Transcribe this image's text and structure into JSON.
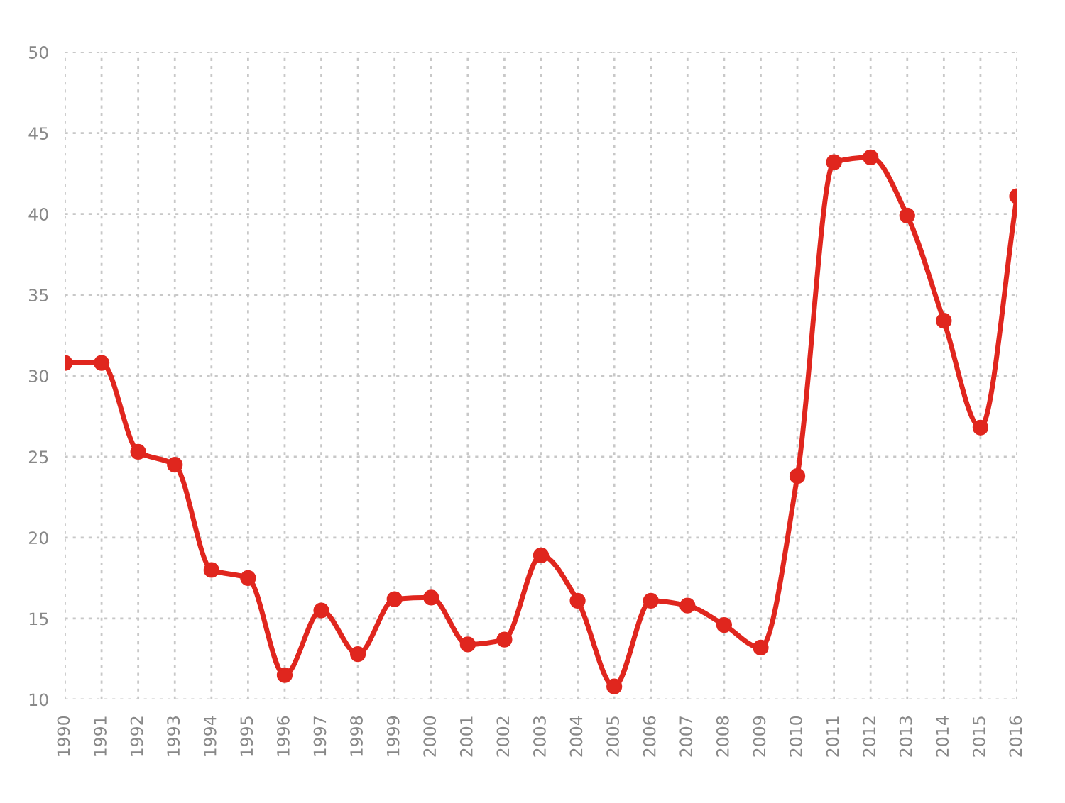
{
  "chart_data": {
    "type": "line",
    "categories": [
      "1990",
      "1991",
      "1992",
      "1993",
      "1994",
      "1995",
      "1996",
      "1997",
      "1998",
      "1999",
      "2000",
      "2001",
      "2002",
      "2003",
      "2004",
      "2005",
      "2006",
      "2007",
      "2008",
      "2009",
      "2010",
      "2011",
      "2012",
      "2013",
      "2014",
      "2015",
      "2016"
    ],
    "series": [
      {
        "color": "#e0261e",
        "values": [
          30.8,
          30.8,
          25.3,
          24.5,
          18.0,
          17.5,
          11.5,
          15.5,
          12.8,
          16.2,
          16.3,
          13.4,
          13.7,
          18.9,
          16.1,
          10.8,
          16.1,
          15.8,
          14.6,
          13.2,
          23.8,
          43.2,
          43.5,
          39.9,
          33.4,
          26.8,
          41.1
        ]
      }
    ],
    "ylim": [
      10,
      50
    ],
    "yticks": [
      10,
      15,
      20,
      25,
      30,
      35,
      40,
      45,
      50
    ],
    "grid": true,
    "marker": "circle",
    "line_style": "solid"
  }
}
